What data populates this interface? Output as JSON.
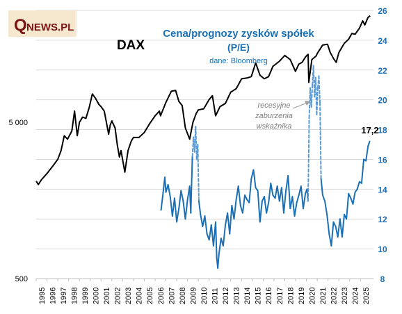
{
  "logo": {
    "letter": "Q",
    "text": "NEWS.PL",
    "background": "#f6e7cf",
    "color": "#7a1414"
  },
  "chart_data": {
    "type": "line",
    "title": "Cena/prognozy  zysków spółek",
    "subtitle": "(P/E)",
    "source": "dane: Bloomberg",
    "series_label": "DAX",
    "annotation": [
      "recesyjne",
      "zaburzenia",
      "wskaźnika"
    ],
    "last_value_label": "17,2",
    "colors": {
      "dax": "#000000",
      "pe": "#1a6fb5",
      "pe_dashed": "#5a9ad6",
      "grid": "#d9d9d9",
      "right_axis": "#1a6fb5"
    },
    "x_axis": {
      "range": [
        1995,
        2026.2
      ],
      "tick_labels": [
        "1995",
        "1996",
        "1997",
        "1998",
        "1999",
        "2000",
        "2001",
        "2002",
        "2003",
        "2004",
        "2005",
        "2006",
        "2007",
        "2008",
        "2009",
        "2010",
        "2011",
        "2012",
        "2013",
        "2014",
        "2015",
        "2016",
        "2017",
        "2018",
        "2019",
        "2020",
        "2021",
        "2022",
        "2023",
        "2024",
        "2025"
      ]
    },
    "y_left": {
      "scale": "log",
      "range": [
        500,
        26000
      ],
      "tick_values": [
        500,
        5000
      ],
      "tick_labels": [
        "500",
        "5 000"
      ]
    },
    "y_right": {
      "scale": "linear",
      "range": [
        8,
        26
      ],
      "tick_values": [
        8,
        10,
        12,
        14,
        16,
        18,
        20,
        22,
        24,
        26
      ],
      "tick_labels": [
        "8",
        "10",
        "12",
        "14",
        "16",
        "18",
        "20",
        "22",
        "24",
        "26"
      ]
    },
    "grid": "horizontal, right axis",
    "series": [
      {
        "name": "DAX",
        "axis": "left",
        "x": [
          1995.0,
          1995.2,
          1995.5,
          1996.0,
          1996.5,
          1997.0,
          1997.3,
          1997.6,
          1997.9,
          1998.3,
          1998.55,
          1998.8,
          1999.0,
          1999.3,
          1999.6,
          1999.9,
          2000.2,
          2000.5,
          2000.8,
          2001.0,
          2001.3,
          2001.7,
          2001.85,
          2002.0,
          2002.3,
          2002.5,
          2002.7,
          2002.85,
          2003.2,
          2003.5,
          2003.8,
          2004.0,
          2004.5,
          2005.0,
          2005.5,
          2006.0,
          2006.4,
          2006.5,
          2007.0,
          2007.5,
          2007.9,
          2008.2,
          2008.5,
          2008.8,
          2009.2,
          2009.5,
          2009.8,
          2010.0,
          2010.5,
          2011.0,
          2011.3,
          2011.6,
          2011.8,
          2012.0,
          2012.5,
          2013.0,
          2013.5,
          2014.0,
          2014.5,
          2014.9,
          2015.3,
          2015.7,
          2016.1,
          2016.5,
          2016.9,
          2017.5,
          2018.0,
          2018.5,
          2018.98,
          2019.3,
          2019.6,
          2019.95,
          2020.15,
          2020.22,
          2020.5,
          2020.9,
          2021.0,
          2021.5,
          2021.95,
          2022.2,
          2022.5,
          2022.75,
          2023.0,
          2023.5,
          2023.9,
          2024.2,
          2024.5,
          2024.9,
          2025.2,
          2025.4,
          2025.7,
          2025.9
        ],
        "y": [
          2100,
          2000,
          2150,
          2350,
          2600,
          2900,
          3300,
          4100,
          3900,
          4400,
          5900,
          4100,
          5000,
          5400,
          5300,
          6200,
          7600,
          7100,
          6500,
          6300,
          5900,
          4200,
          4800,
          5100,
          4600,
          3600,
          3000,
          3300,
          2400,
          3300,
          3800,
          4000,
          4000,
          4300,
          4900,
          5500,
          5900,
          5500,
          6700,
          7900,
          8000,
          6800,
          6400,
          4600,
          3900,
          5000,
          5700,
          6000,
          6100,
          7000,
          7400,
          5500,
          5900,
          6300,
          6600,
          7800,
          8200,
          9500,
          9600,
          9800,
          12000,
          10000,
          9500,
          9800,
          11400,
          12300,
          13400,
          12600,
          10600,
          11800,
          12100,
          13200,
          13600,
          9000,
          12600,
          13300,
          13800,
          15600,
          15800,
          14000,
          12800,
          12100,
          14000,
          16000,
          17000,
          18500,
          18300,
          20000,
          22300,
          21000,
          23500,
          24000
        ]
      },
      {
        "name": "P/E",
        "axis": "right",
        "x": [
          2006.55,
          2006.7,
          2006.9,
          2007.0,
          2007.2,
          2007.4,
          2007.6,
          2007.8,
          2008.0,
          2008.2,
          2008.4,
          2008.6,
          2008.8,
          2009.0,
          2009.2,
          2009.3,
          2009.45,
          2009.55,
          2009.65,
          2009.75,
          2009.85,
          2009.95,
          2010.05,
          2010.2,
          2010.4,
          2010.6,
          2010.8,
          2011.0,
          2011.2,
          2011.4,
          2011.6,
          2011.7,
          2011.8,
          2011.9,
          2012.1,
          2012.3,
          2012.5,
          2012.7,
          2012.9,
          2013.1,
          2013.3,
          2013.5,
          2013.7,
          2013.9,
          2014.1,
          2014.3,
          2014.5,
          2014.7,
          2014.9,
          2015.1,
          2015.3,
          2015.5,
          2015.7,
          2015.9,
          2016.1,
          2016.3,
          2016.5,
          2016.7,
          2016.9,
          2017.1,
          2017.3,
          2017.5,
          2017.7,
          2017.9,
          2018.1,
          2018.3,
          2018.5,
          2018.7,
          2018.9,
          2019.1,
          2019.3,
          2019.5,
          2019.7,
          2019.9,
          2020.05,
          2020.15,
          2020.25,
          2020.35,
          2020.45,
          2020.55,
          2020.65,
          2020.75,
          2020.85,
          2020.95,
          2021.05,
          2021.15,
          2021.25,
          2021.35,
          2021.5,
          2021.7,
          2021.9,
          2022.1,
          2022.3,
          2022.5,
          2022.7,
          2022.9,
          2023.1,
          2023.3,
          2023.5,
          2023.7,
          2023.9,
          2024.1,
          2024.3,
          2024.5,
          2024.7,
          2024.9,
          2025.1,
          2025.3,
          2025.5,
          2025.7,
          2025.85
        ],
        "y": [
          12.6,
          13.5,
          14.8,
          13.8,
          14.3,
          13.5,
          12.2,
          13.4,
          11.8,
          12.7,
          13.9,
          13.2,
          12.0,
          13.3,
          14.2,
          12.4,
          16.2,
          17.5,
          16.5,
          18.2,
          16.0,
          17.0,
          13.2,
          12.3,
          11.5,
          12.2,
          11.0,
          10.6,
          11.6,
          10.2,
          11.8,
          9.4,
          8.7,
          9.6,
          10.7,
          10.2,
          11.6,
          12.4,
          11.0,
          12.9,
          12.0,
          13.3,
          14.2,
          12.9,
          12.4,
          13.6,
          13.3,
          13.1,
          14.7,
          15.3,
          14.1,
          13.9,
          11.8,
          13.2,
          13.5,
          12.4,
          13.1,
          14.4,
          13.6,
          13.4,
          14.2,
          13.2,
          14.1,
          12.4,
          13.9,
          14.9,
          12.7,
          13.5,
          12.2,
          13.1,
          13.6,
          14.2,
          12.7,
          13.7,
          14.0,
          13.2,
          18.8,
          20.8,
          19.5,
          21.0,
          22.3,
          20.2,
          21.5,
          19.0,
          20.8,
          21.6,
          19.8,
          14.7,
          13.6,
          13.2,
          12.3,
          11.0,
          10.2,
          11.8,
          11.5,
          10.8,
          12.0,
          10.8,
          12.3,
          12.0,
          13.7,
          13.4,
          13.0,
          13.8,
          14.0,
          14.5,
          14.4,
          16.0,
          15.9,
          16.9,
          17.2
        ],
        "dashed_x_ranges": [
          [
            2009.4,
            2010.1
          ],
          [
            2020.1,
            2021.4
          ]
        ]
      }
    ]
  }
}
